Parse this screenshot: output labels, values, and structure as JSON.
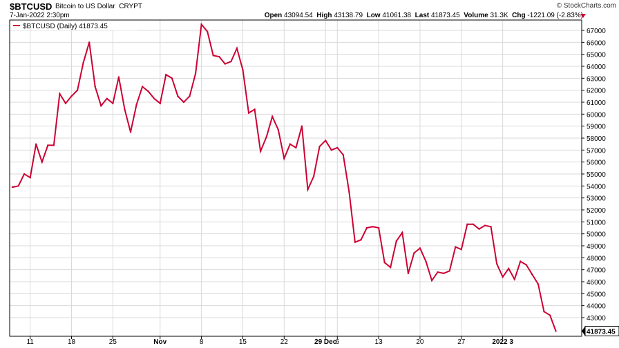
{
  "header": {
    "symbol": "$BTCUSD",
    "name": "Bitcoin to US Dollar",
    "exchange": "CRYPT",
    "date": "7-Jan-2022 2:30pm",
    "copyright": "© StockCharts.com",
    "open_label": "Open",
    "open": "43094.54",
    "high_label": "High",
    "high": "43138.79",
    "low_label": "Low",
    "low": "41061.38",
    "last_label": "Last",
    "last": "41873.45",
    "volume_label": "Volume",
    "volume": "31.3K",
    "chg_label": "Chg",
    "chg": "-1221.09 (-2.83%)"
  },
  "colors": {
    "line": "#cc0033",
    "grid": "#d9d9d9",
    "axis": "#000000"
  },
  "chart_data": {
    "type": "line",
    "title": "$BTCUSD Bitcoin to US Dollar",
    "legend": "$BTCUSD (Daily) 41873.45",
    "last_value_label": "41873.45",
    "ylim": [
      41800,
      67800
    ],
    "yticks": [
      43000,
      44000,
      45000,
      46000,
      47000,
      48000,
      49000,
      50000,
      51000,
      52000,
      53000,
      54000,
      55000,
      56000,
      57000,
      58000,
      59000,
      60000,
      61000,
      62000,
      63000,
      64000,
      65000,
      66000,
      67000
    ],
    "xticks": [
      {
        "index": 3,
        "label": "11"
      },
      {
        "index": 10,
        "label": "18"
      },
      {
        "index": 17,
        "label": "25"
      },
      {
        "index": 25,
        "label": "Nov"
      },
      {
        "index": 32,
        "label": "8"
      },
      {
        "index": 39,
        "label": "15"
      },
      {
        "index": 46,
        "label": "22"
      },
      {
        "index": 53,
        "label": "29 Dec"
      },
      {
        "index": 55,
        "label": "6"
      },
      {
        "index": 62,
        "label": "13"
      },
      {
        "index": 69,
        "label": "20"
      },
      {
        "index": 76,
        "label": "27"
      },
      {
        "index": 83,
        "label": "2022 3"
      }
    ],
    "grid": true,
    "series": [
      {
        "name": "$BTCUSD (Daily)",
        "x_start": "2021-10-08",
        "values": [
          53900,
          54000,
          55000,
          54700,
          57500,
          56000,
          57400,
          57400,
          61700,
          60900,
          61500,
          62000,
          64300,
          66000,
          62300,
          60700,
          61300,
          60900,
          63100,
          60400,
          58500,
          60800,
          62300,
          61900,
          61300,
          60900,
          63300,
          63000,
          61500,
          61000,
          61500,
          63400,
          67500,
          66900,
          64900,
          64800,
          64200,
          64400,
          65500,
          63700,
          60100,
          60400,
          56900,
          58100,
          59800,
          58700,
          56300,
          57500,
          57200,
          59000,
          53700,
          54800,
          57300,
          57800,
          57000,
          57200,
          56600,
          53500,
          49300,
          49500,
          50500,
          50600,
          50500,
          47600,
          47200,
          49400,
          50100,
          46700,
          48400,
          48800,
          47700,
          46100,
          46800,
          46700,
          46900,
          48900,
          48700,
          50800,
          50800,
          50400,
          50700,
          50600,
          47500,
          46400,
          47100,
          46200,
          47700,
          47400,
          46600,
          45800,
          43500,
          43200,
          41873.45
        ]
      }
    ]
  }
}
